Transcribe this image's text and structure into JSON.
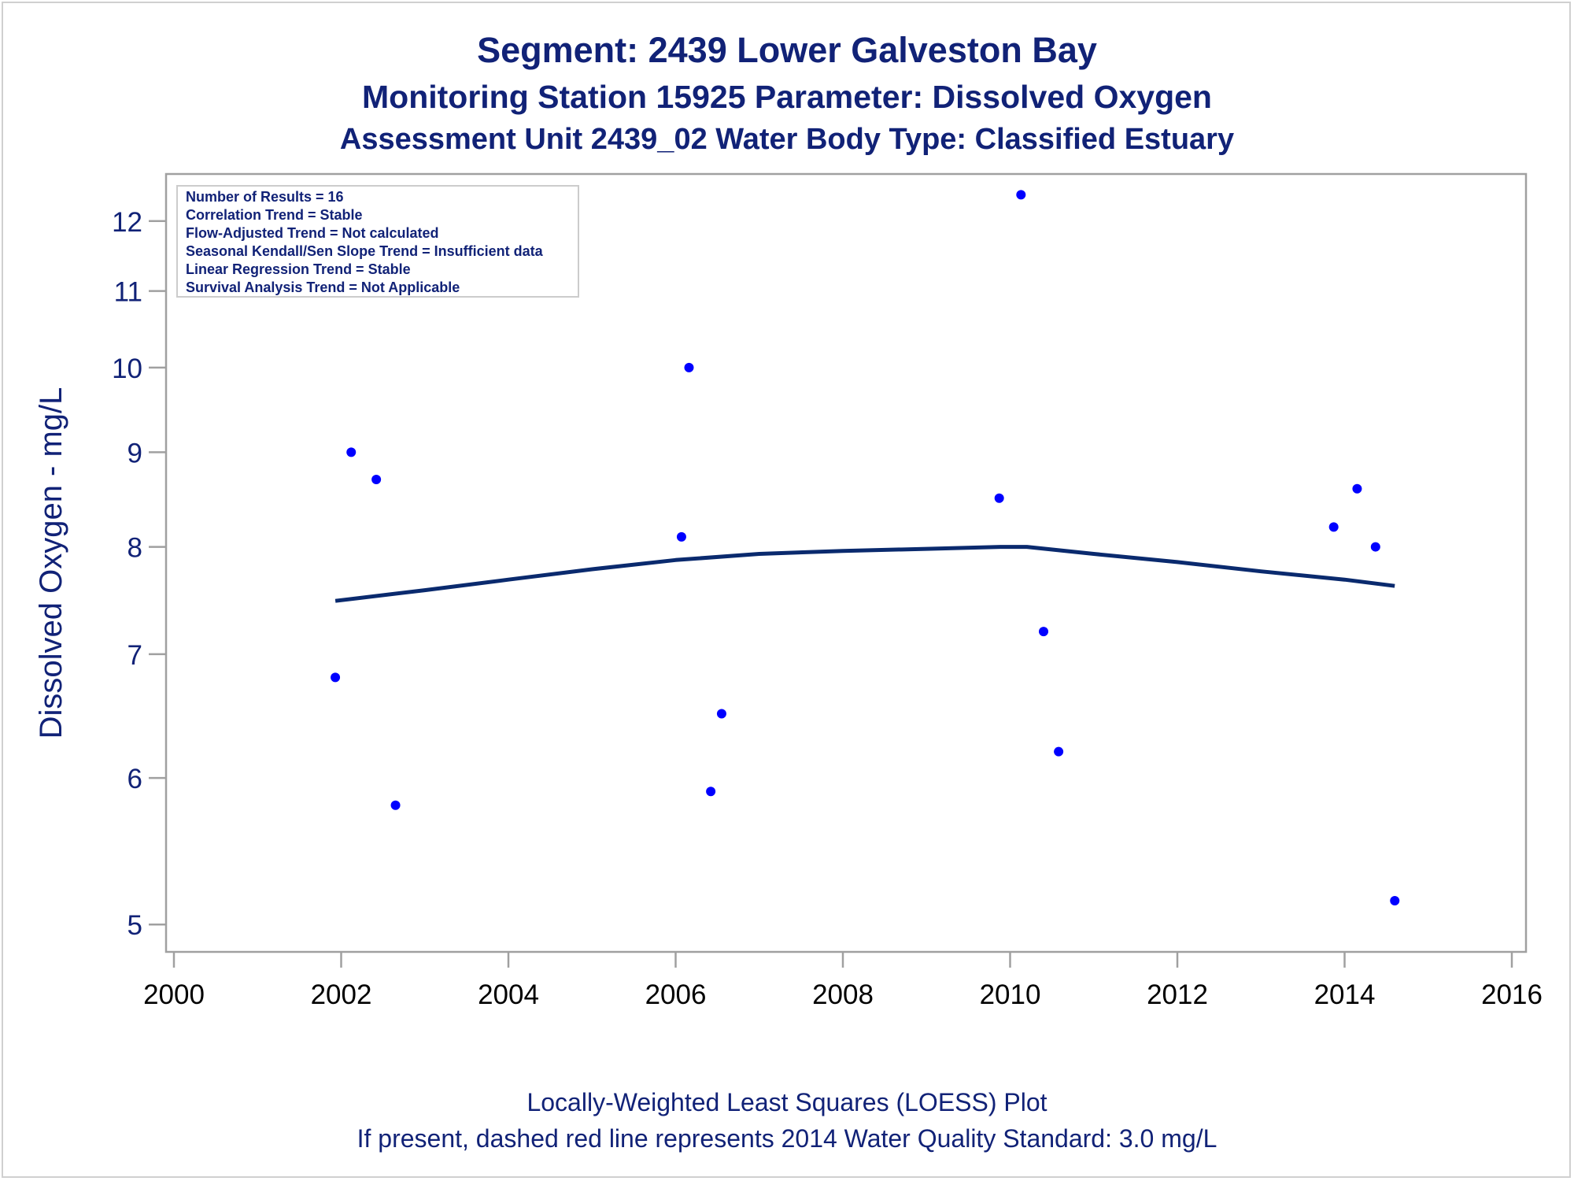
{
  "titles": {
    "line1": "Segment: 2439  Lower Galveston Bay",
    "line2": "Monitoring Station 15925 Parameter: Dissolved Oxygen",
    "line3": "Assessment Unit 2439_02   Water Body Type: Classified Estuary"
  },
  "footnotes": {
    "line1": "Locally-Weighted Least Squares (LOESS) Plot",
    "line2": "If present, dashed red line represents 2014 Water Quality Standard: 3.0 mg/L"
  },
  "info_box": [
    "Number of Results = 16",
    "Correlation Trend = Stable",
    "Flow-Adjusted Trend = Not calculated",
    "Seasonal Kendall/Sen Slope Trend = Insufficient data",
    "Linear Regression Trend = Stable",
    "Survival Analysis Trend = Not Applicable"
  ],
  "colors": {
    "text": "#112277",
    "points": "#0000ff",
    "loess_line": "#0a2a6e",
    "axis": "#a0a0a0"
  },
  "chart_data": {
    "type": "scatter",
    "title": "Segment: 2439  Lower Galveston Bay",
    "ylabel": "Dissolved Oxygen - mg/L",
    "xlabel": "",
    "y_scale": "log",
    "xlim": [
      2000,
      2016
    ],
    "ylim": [
      4.88,
      12.6
    ],
    "x_ticks": [
      2000,
      2002,
      2004,
      2006,
      2008,
      2010,
      2012,
      2014,
      2016
    ],
    "y_ticks": [
      5,
      6,
      7,
      8,
      9,
      10,
      11,
      12
    ],
    "grid": false,
    "legend": "none",
    "series": [
      {
        "type": "scatter",
        "points": [
          {
            "x": 2001.93,
            "y": 6.8
          },
          {
            "x": 2002.12,
            "y": 9.0
          },
          {
            "x": 2002.42,
            "y": 8.7
          },
          {
            "x": 2002.65,
            "y": 5.8
          },
          {
            "x": 2006.07,
            "y": 8.1
          },
          {
            "x": 2006.16,
            "y": 10.0
          },
          {
            "x": 2006.42,
            "y": 5.9
          },
          {
            "x": 2006.55,
            "y": 6.5
          },
          {
            "x": 2009.87,
            "y": 8.5
          },
          {
            "x": 2010.13,
            "y": 12.4
          },
          {
            "x": 2010.4,
            "y": 7.2
          },
          {
            "x": 2010.58,
            "y": 6.2
          },
          {
            "x": 2013.87,
            "y": 8.2
          },
          {
            "x": 2014.15,
            "y": 8.6
          },
          {
            "x": 2014.37,
            "y": 8.0
          },
          {
            "x": 2014.6,
            "y": 5.15
          }
        ]
      },
      {
        "type": "line",
        "points": [
          {
            "x": 2001.93,
            "y": 7.48
          },
          {
            "x": 2003.0,
            "y": 7.58
          },
          {
            "x": 2004.0,
            "y": 7.68
          },
          {
            "x": 2005.0,
            "y": 7.78
          },
          {
            "x": 2006.0,
            "y": 7.87
          },
          {
            "x": 2007.0,
            "y": 7.93
          },
          {
            "x": 2008.0,
            "y": 7.96
          },
          {
            "x": 2009.0,
            "y": 7.98
          },
          {
            "x": 2009.9,
            "y": 8.0
          },
          {
            "x": 2010.2,
            "y": 8.0
          },
          {
            "x": 2011.0,
            "y": 7.93
          },
          {
            "x": 2012.0,
            "y": 7.85
          },
          {
            "x": 2013.0,
            "y": 7.76
          },
          {
            "x": 2014.0,
            "y": 7.68
          },
          {
            "x": 2014.6,
            "y": 7.62
          }
        ]
      }
    ]
  }
}
